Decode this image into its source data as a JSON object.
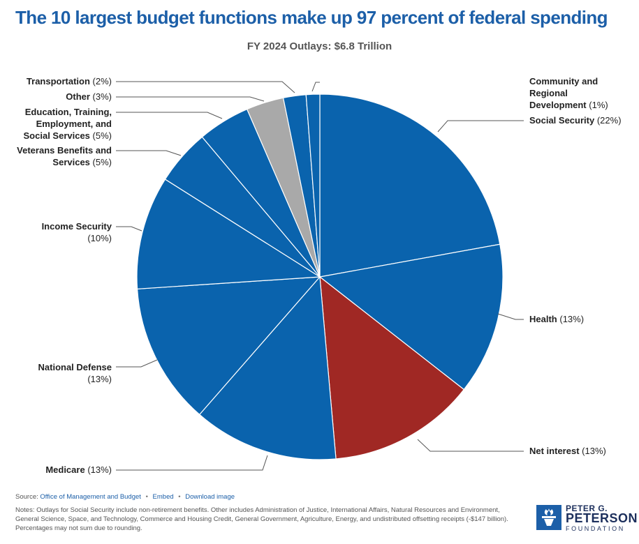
{
  "title": "The 10 largest budget functions make up 97 percent of federal spending",
  "subtitle": "FY 2024 Outlays: $6.8 Trillion",
  "chart_data": {
    "type": "pie",
    "title": "The 10 largest budget functions make up 97 percent of federal spending",
    "subtitle": "FY 2024 Outlays: $6.8 Trillion",
    "slices": [
      {
        "label": "Social Security",
        "pct_text": "(22%)",
        "value": 22.1,
        "color": "#0a63ad"
      },
      {
        "label": "Health",
        "pct_text": "(13%)",
        "value": 13.4,
        "color": "#0a63ad"
      },
      {
        "label": "Net interest",
        "pct_text": "(13%)",
        "value": 13.0,
        "color": "#a02824"
      },
      {
        "label": "Medicare",
        "pct_text": "(13%)",
        "value": 12.8,
        "color": "#0a63ad"
      },
      {
        "label": "National Defense",
        "pct_text": "(13%)",
        "value": 12.5,
        "color": "#0a63ad"
      },
      {
        "label": "Income Security",
        "pct_text": "(10%)",
        "value": 10.0,
        "color": "#0a63ad"
      },
      {
        "label": "Veterans Benefits and Services",
        "pct_text": "(5%)",
        "value": 4.9,
        "color": "#0a63ad"
      },
      {
        "label": "Education, Training, Employment, and Social Services",
        "pct_text": "(5%)",
        "value": 4.6,
        "color": "#0a63ad"
      },
      {
        "label": "Other",
        "pct_text": "(3%)",
        "value": 3.3,
        "color": "#a9a9a9"
      },
      {
        "label": "Transportation",
        "pct_text": "(2%)",
        "value": 2.0,
        "color": "#0a63ad"
      },
      {
        "label": "Community and Regional Development",
        "pct_text": "(1%)",
        "value": 1.2,
        "color": "#0a63ad"
      }
    ]
  },
  "labels": {
    "social_security": {
      "name": "Social Security",
      "pct": "(22%)"
    },
    "health": {
      "name": "Health",
      "pct": "(13%)"
    },
    "net_interest": {
      "name": "Net interest",
      "pct": "(13%)"
    },
    "medicare": {
      "name": "Medicare",
      "pct": "(13%)"
    },
    "national_defense": {
      "name": "National Defense",
      "pct": "(13%)"
    },
    "income_security": {
      "name": "Income Security",
      "pct": "(10%)"
    },
    "veterans": {
      "line1": "Veterans Benefits and",
      "line2": "Services",
      "pct": "(5%)"
    },
    "education": {
      "line1": "Education, Training,",
      "line2": "Employment, and",
      "line3": "Social Services",
      "pct": "(5%)"
    },
    "other": {
      "name": "Other",
      "pct": "(3%)"
    },
    "transportation": {
      "name": "Transportation",
      "pct": "(2%)"
    },
    "community": {
      "line1": "Community and",
      "line2": "Regional",
      "line3": "Development",
      "pct": "(1%)"
    }
  },
  "source": {
    "prefix": "Source:",
    "link": "Office of Management and Budget",
    "embed": "Embed",
    "download": "Download image",
    "bullet": "•"
  },
  "notes": "Notes: Outlays for Social Security include non-retirement benefits. Other includes Administration of Justice, International Affairs, Natural Resources and Environment, General Science, Space, and Technology, Commerce and Housing Credit, General Government, Agriculture, Energy, and undistributed offsetting receipts (-$147 billion). Percentages may not sum due to rounding.",
  "logo": {
    "line1": "PETER G.",
    "line2": "PETERSON",
    "line3": "FOUNDATION"
  }
}
